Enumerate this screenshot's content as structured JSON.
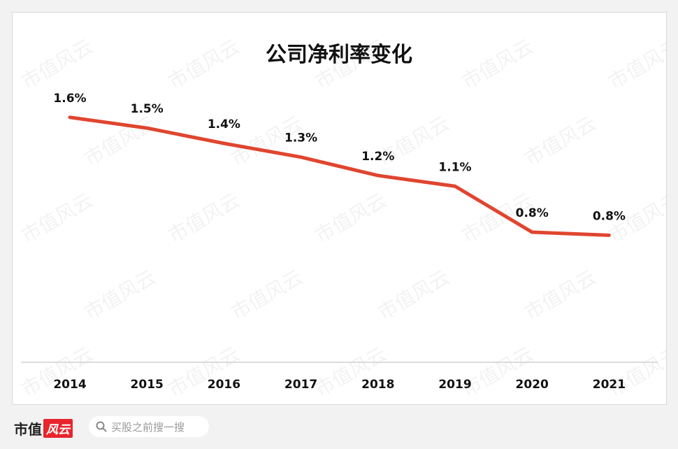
{
  "chart_data": {
    "type": "line",
    "title": "公司净利率变化",
    "categories": [
      "2014",
      "2015",
      "2016",
      "2017",
      "2018",
      "2019",
      "2020",
      "2021"
    ],
    "values": [
      1.6,
      1.53,
      1.43,
      1.34,
      1.22,
      1.15,
      0.85,
      0.83
    ],
    "data_labels": [
      "1.6%",
      "1.5%",
      "1.4%",
      "1.3%",
      "1.2%",
      "1.1%",
      "0.8%",
      "0.8%"
    ],
    "ylim": [
      0,
      1.8
    ],
    "grid": false,
    "line_color": "#e0452f",
    "xlabel": "",
    "ylabel": ""
  },
  "watermark": "市值风云",
  "footer": {
    "logo_text": "市值",
    "logo_badge": "风云",
    "search_placeholder": "买股之前搜一搜",
    "search_icon": "search-icon"
  }
}
